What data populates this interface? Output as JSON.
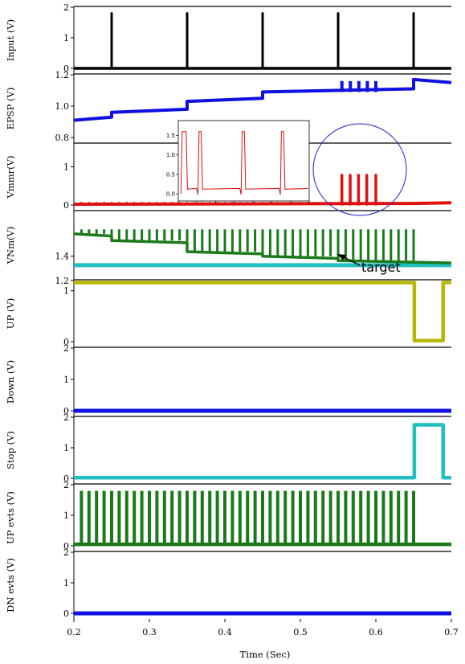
{
  "chart_data": {
    "type": "line",
    "xlabel": "Time (Sec)",
    "xlim": [
      0.2,
      0.7
    ],
    "xticks": [
      "0.2",
      "0.3",
      "0.4",
      "0.5",
      "0.6",
      "0.7"
    ],
    "panels": [
      {
        "ylabel": "Input (V)",
        "ylim": [
          0,
          2
        ],
        "yticks": [
          "0",
          "1",
          "2"
        ],
        "color": "#000000",
        "series": {
          "name": "",
          "baseline": 0.0,
          "spikes_at": [
            0.25,
            0.35,
            0.45,
            0.55,
            0.65
          ],
          "spike_peak": 1.8
        }
      },
      {
        "ylabel": "EPSP (V)",
        "ylim": [
          0.8,
          1.2
        ],
        "yticks": [
          "0.8",
          "1.0",
          "1.2"
        ],
        "color": "#1010e0",
        "series": {
          "name": "",
          "steps": [
            [
              0.2,
              0.91
            ],
            [
              0.25,
              0.96
            ],
            [
              0.35,
              1.03
            ],
            [
              0.45,
              1.09
            ],
            [
              0.65,
              1.17
            ],
            [
              0.7,
              1.15
            ]
          ],
          "oscillation_window": [
            0.555,
            0.6
          ],
          "oscillation_range": [
            1.09,
            1.16
          ]
        }
      },
      {
        "ylabel": "Vmmr(V)",
        "ylim": [
          0,
          1.6
        ],
        "yticks": [
          "0",
          "1"
        ],
        "color": "#e01010",
        "series": {
          "name": "",
          "baseline": 0.02,
          "spikes_at": [
            0.555,
            0.566,
            0.577,
            0.588,
            0.6
          ],
          "spike_peak": 0.78
        }
      },
      {
        "ylabel": "VNm(V)",
        "ylim": [
          1.32,
          1.6
        ],
        "yticks": [
          "1.4"
        ],
        "colors": [
          "#1a7a1a",
          "#20c0c0"
        ],
        "series": [
          {
            "name": "",
            "steps": [
              [
                0.2,
                1.5
              ],
              [
                0.25,
                1.47
              ],
              [
                0.35,
                1.42
              ],
              [
                0.45,
                1.4
              ],
              [
                0.55,
                1.38
              ],
              [
                0.7,
                1.36
              ]
            ],
            "spike_period": 0.01,
            "spike_peak": 1.52
          },
          {
            "name": "",
            "constant": 1.36
          }
        ]
      },
      {
        "ylabel": "UP (V)",
        "ylim": [
          0,
          1.2
        ],
        "yticks": [
          "0",
          "1",
          "1.2"
        ],
        "color": "#b8b800",
        "series": {
          "name": "",
          "high": 1.16,
          "low": 0.02,
          "low_window": [
            0.651,
            0.689
          ]
        }
      },
      {
        "ylabel": "Down (V)",
        "ylim": [
          0,
          2
        ],
        "yticks": [
          "0",
          "1",
          "2"
        ],
        "color": "#1010e0",
        "series": {
          "name": "",
          "constant": 0.0
        }
      },
      {
        "ylabel": "Stop (V)",
        "ylim": [
          0,
          2
        ],
        "yticks": [
          "0",
          "1",
          "2"
        ],
        "color": "#20c0c0",
        "series": {
          "name": "",
          "low": 0.02,
          "high": 1.75,
          "high_window": [
            0.651,
            0.689
          ]
        }
      },
      {
        "ylabel": "UP evts (V)",
        "ylim": [
          0,
          2
        ],
        "yticks": [
          "0",
          "1",
          "2"
        ],
        "color": "#1a7a1a",
        "series": {
          "name": "",
          "baseline": 0.05,
          "spike_period": 0.01,
          "spike_window": [
            0.21,
            0.65
          ],
          "spike_peak": 1.8
        }
      },
      {
        "ylabel": "DN evts (V)",
        "ylim": [
          0,
          2
        ],
        "yticks": [
          "0",
          "1",
          "2"
        ],
        "color": "#1010e0",
        "series": {
          "name": "",
          "constant": 0.0
        }
      }
    ],
    "inset": {
      "yticks": [
        "0.0",
        "0.5",
        "1.0",
        "1.5"
      ],
      "ylim": [
        -0.1,
        1.8
      ],
      "color": "#e01010",
      "spikes_at": [
        0.15,
        0.48,
        0.78
      ],
      "spike_peak": 1.6,
      "baseline": 0.12
    },
    "annotations": {
      "target_text": "target"
    }
  }
}
